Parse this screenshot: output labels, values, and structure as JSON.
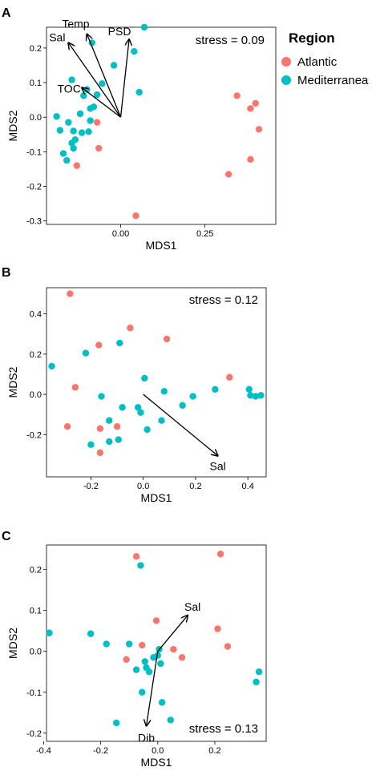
{
  "colors": {
    "atlantic": "#F8766D",
    "mediterranea": "#00BFC4"
  },
  "legend": {
    "title": "Region",
    "items": [
      {
        "label": "Atlantic",
        "color": "#F8766D"
      },
      {
        "label": "Mediterranea",
        "color": "#00BFC4"
      }
    ]
  },
  "chart_data": [
    {
      "type": "scatter",
      "panel": "A",
      "stress": "stress = 0.09",
      "xlabel": "MDS1",
      "ylabel": "MDS2",
      "xlim": [
        -0.22,
        0.46
      ],
      "ylim": [
        -0.31,
        0.26
      ],
      "xticks": [
        0.0,
        0.25
      ],
      "xtick_labels": [
        "0.00",
        "0.25"
      ],
      "yticks": [
        -0.3,
        -0.2,
        -0.1,
        0.0,
        0.1,
        0.2
      ],
      "ytick_labels": [
        "-0.3",
        "-0.2",
        "-0.1",
        "0.0",
        "0.1",
        "0.2"
      ],
      "series": [
        {
          "name": "Atlantic",
          "points": [
            [
              -0.07,
              -0.015
            ],
            [
              -0.065,
              -0.09
            ],
            [
              -0.13,
              -0.14
            ],
            [
              0.045,
              -0.285
            ],
            [
              0.32,
              -0.165
            ],
            [
              0.345,
              0.062
            ],
            [
              0.385,
              0.025
            ],
            [
              0.385,
              -0.122
            ],
            [
              0.4,
              0.04
            ],
            [
              0.41,
              -0.035
            ]
          ]
        },
        {
          "name": "Mediterranea",
          "points": [
            [
              -0.19,
              0.002
            ],
            [
              -0.18,
              -0.038
            ],
            [
              -0.17,
              -0.105
            ],
            [
              -0.16,
              -0.125
            ],
            [
              -0.155,
              -0.015
            ],
            [
              -0.145,
              0.108
            ],
            [
              -0.145,
              -0.075
            ],
            [
              -0.14,
              -0.09
            ],
            [
              -0.14,
              -0.04
            ],
            [
              -0.135,
              -0.065
            ],
            [
              -0.12,
              0.01
            ],
            [
              -0.115,
              -0.045
            ],
            [
              -0.11,
              0.062
            ],
            [
              -0.1,
              0.08
            ],
            [
              -0.095,
              -0.042
            ],
            [
              -0.09,
              -0.01
            ],
            [
              -0.09,
              0.025
            ],
            [
              -0.085,
              0.215
            ],
            [
              -0.08,
              0.03
            ],
            [
              -0.07,
              0.065
            ],
            [
              -0.055,
              0.097
            ],
            [
              -0.02,
              0.15
            ],
            [
              0.04,
              0.19
            ],
            [
              0.055,
              0.072
            ],
            [
              0.07,
              0.26
            ]
          ]
        }
      ],
      "vectors": [
        {
          "label": "Sal",
          "x": -0.155,
          "y": 0.215
        },
        {
          "label": "Temp",
          "x": -0.1,
          "y": 0.24
        },
        {
          "label": "PSD",
          "x": 0.025,
          "y": 0.225
        },
        {
          "label": "TOC",
          "x": -0.115,
          "y": 0.085
        }
      ]
    },
    {
      "type": "scatter",
      "panel": "B",
      "stress": "stress = 0.12",
      "xlabel": "MDS1",
      "ylabel": "MDS2",
      "xlim": [
        -0.37,
        0.47
      ],
      "ylim": [
        -0.41,
        0.53
      ],
      "xticks": [
        -0.2,
        0.0,
        0.2,
        0.4
      ],
      "xtick_labels": [
        "-0.2",
        "0.0",
        "0.2",
        "0.4"
      ],
      "yticks": [
        -0.2,
        0.0,
        0.2,
        0.4
      ],
      "ytick_labels": [
        "-0.2",
        "0.0",
        "0.2",
        "0.4"
      ],
      "series": [
        {
          "name": "Atlantic",
          "points": [
            [
              -0.28,
              0.5
            ],
            [
              -0.29,
              -0.16
            ],
            [
              -0.26,
              0.035
            ],
            [
              -0.17,
              0.245
            ],
            [
              -0.165,
              -0.17
            ],
            [
              -0.165,
              -0.29
            ],
            [
              -0.1,
              -0.16
            ],
            [
              -0.05,
              0.33
            ],
            [
              0.09,
              0.275
            ],
            [
              0.33,
              0.085
            ]
          ]
        },
        {
          "name": "Mediterranea",
          "points": [
            [
              -0.35,
              0.14
            ],
            [
              -0.22,
              0.205
            ],
            [
              -0.2,
              -0.25
            ],
            [
              -0.16,
              -0.01
            ],
            [
              -0.13,
              -0.13
            ],
            [
              -0.13,
              -0.235
            ],
            [
              -0.095,
              -0.225
            ],
            [
              -0.09,
              0.255
            ],
            [
              -0.08,
              -0.065
            ],
            [
              -0.02,
              -0.065
            ],
            [
              -0.01,
              -0.09
            ],
            [
              0.005,
              0.08
            ],
            [
              0.015,
              -0.175
            ],
            [
              0.07,
              -0.13
            ],
            [
              0.08,
              0.015
            ],
            [
              0.15,
              -0.055
            ],
            [
              0.19,
              -0.01
            ],
            [
              0.275,
              0.025
            ],
            [
              0.405,
              0.025
            ],
            [
              0.41,
              -0.005
            ],
            [
              0.43,
              -0.01
            ],
            [
              0.45,
              -0.005
            ]
          ]
        }
      ],
      "vectors": [
        {
          "label": "Sal",
          "x": 0.285,
          "y": -0.305
        }
      ]
    },
    {
      "type": "scatter",
      "panel": "C",
      "stress": "stress = 0.13",
      "xlabel": "MDS1",
      "ylabel": "MDS2",
      "xlim": [
        -0.39,
        0.38
      ],
      "ylim": [
        -0.22,
        0.26
      ],
      "xticks": [
        -0.4,
        -0.2,
        0.0,
        0.2
      ],
      "xtick_labels": [
        "-0.4",
        "-0.2",
        "0.0",
        "0.2"
      ],
      "yticks": [
        -0.2,
        -0.1,
        0.0,
        0.1,
        0.2
      ],
      "ytick_labels": [
        "-0.2",
        "-0.1",
        "0.0",
        "0.1",
        "0.2"
      ],
      "series": [
        {
          "name": "Atlantic",
          "points": [
            [
              -0.11,
              -0.02
            ],
            [
              -0.075,
              0.232
            ],
            [
              -0.055,
              0.015
            ],
            [
              -0.005,
              0.075
            ],
            [
              0.055,
              0.005
            ],
            [
              0.085,
              -0.015
            ],
            [
              0.22,
              0.238
            ],
            [
              0.21,
              0.055
            ],
            [
              0.245,
              0.012
            ]
          ]
        },
        {
          "name": "Mediterranea",
          "points": [
            [
              -0.38,
              0.045
            ],
            [
              -0.235,
              0.043
            ],
            [
              -0.18,
              0.018
            ],
            [
              -0.145,
              -0.175
            ],
            [
              -0.1,
              0.018
            ],
            [
              -0.075,
              -0.045
            ],
            [
              -0.06,
              0.21
            ],
            [
              -0.055,
              -0.1
            ],
            [
              -0.045,
              -0.025
            ],
            [
              -0.04,
              -0.04
            ],
            [
              -0.03,
              -0.05
            ],
            [
              -0.015,
              -0.015
            ],
            [
              0.0,
              -0.01
            ],
            [
              0.005,
              0.005
            ],
            [
              0.01,
              -0.03
            ],
            [
              0.015,
              -0.125
            ],
            [
              0.045,
              -0.168
            ],
            [
              0.345,
              -0.075
            ],
            [
              0.355,
              -0.05
            ]
          ]
        }
      ],
      "vectors": [
        {
          "label": "Sal",
          "x": 0.105,
          "y": 0.088
        },
        {
          "label": "Dib",
          "x": -0.04,
          "y": -0.182
        }
      ]
    }
  ]
}
